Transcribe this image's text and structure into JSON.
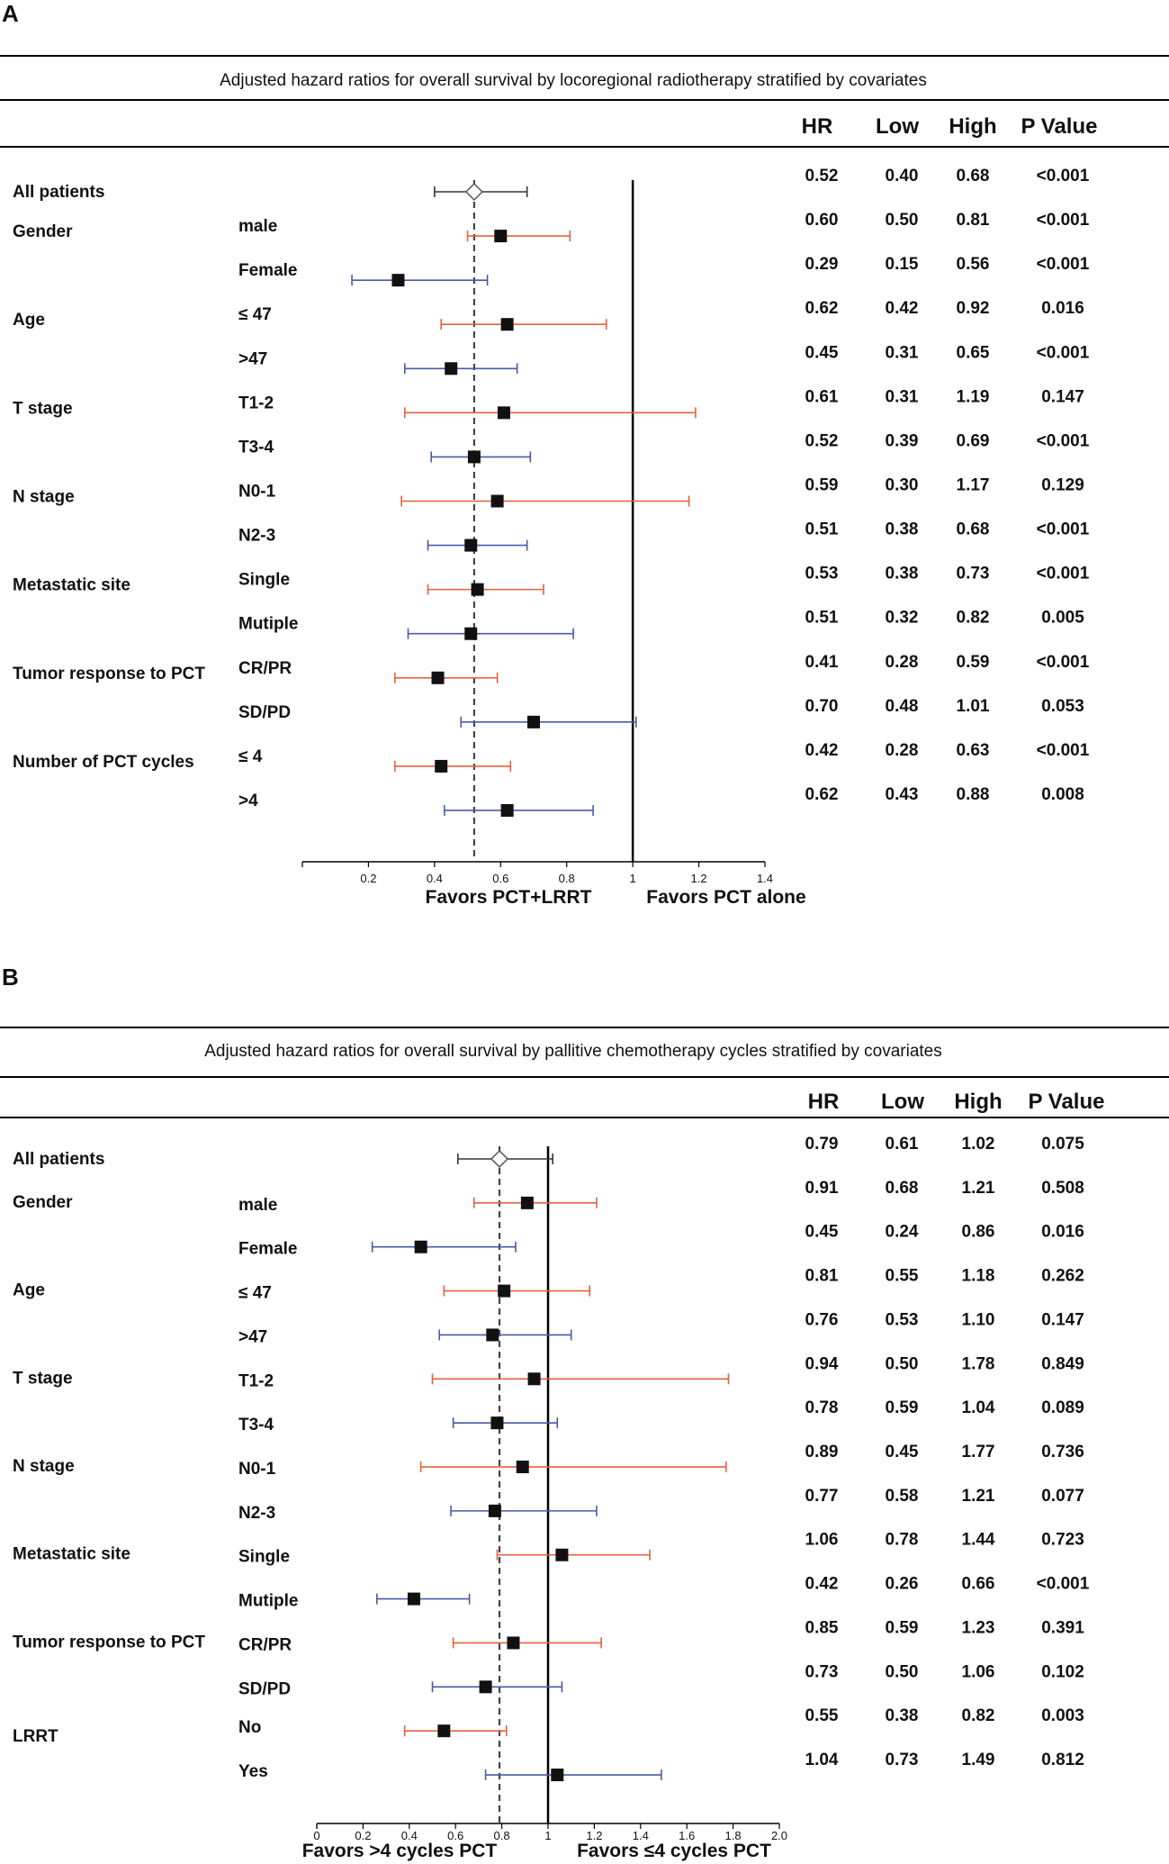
{
  "colors": {
    "upper_ci": "#e8603c",
    "lower_ci": "#4a5aa8",
    "overall_ci": "#333333",
    "marker": "#111111",
    "rule": "#000000"
  },
  "columns": {
    "hr": "HR",
    "low": "Low",
    "high": "High",
    "p": "P Value"
  },
  "chart_data": [
    {
      "panel": "A",
      "type": "forest",
      "title": "Adjusted hazard ratios for overall survival by locoregional radiotherapy stratified by covariates",
      "xlim": [
        0,
        1.4
      ],
      "xticks": [
        "0.2",
        "0.4",
        "0.6",
        "0.8",
        "1",
        "1.2",
        "1.4"
      ],
      "reference_line": 1,
      "dashed_line": 0.52,
      "xlabel_left": "Favors PCT+LRRT",
      "xlabel_right": "Favors PCT alone",
      "rows": [
        {
          "group": "All patients",
          "sub": "",
          "hr": 0.52,
          "low": 0.4,
          "high": 0.68,
          "hr_text": "0.52",
          "low_text": "0.40",
          "high_text": "0.68",
          "p": "<0.001"
        },
        {
          "group": "Gender",
          "sub": "male",
          "hr": 0.6,
          "low": 0.5,
          "high": 0.81,
          "hr_text": "0.60",
          "low_text": "0.50",
          "high_text": "0.81",
          "p": "<0.001"
        },
        {
          "group": "",
          "sub": "Female",
          "hr": 0.29,
          "low": 0.15,
          "high": 0.56,
          "hr_text": "0.29",
          "low_text": "0.15",
          "high_text": "0.56",
          "p": "<0.001"
        },
        {
          "group": "Age",
          "sub": "≤ 47",
          "hr": 0.62,
          "low": 0.42,
          "high": 0.92,
          "hr_text": "0.62",
          "low_text": "0.42",
          "high_text": "0.92",
          "p": "0.016"
        },
        {
          "group": "",
          "sub": ">47",
          "hr": 0.45,
          "low": 0.31,
          "high": 0.65,
          "hr_text": "0.45",
          "low_text": "0.31",
          "high_text": "0.65",
          "p": "<0.001"
        },
        {
          "group": "T stage",
          "sub": "T1-2",
          "hr": 0.61,
          "low": 0.31,
          "high": 1.19,
          "hr_text": "0.61",
          "low_text": "0.31",
          "high_text": "1.19",
          "p": "0.147"
        },
        {
          "group": "",
          "sub": "T3-4",
          "hr": 0.52,
          "low": 0.39,
          "high": 0.69,
          "hr_text": "0.52",
          "low_text": "0.39",
          "high_text": "0.69",
          "p": "<0.001"
        },
        {
          "group": "N stage",
          "sub": "N0-1",
          "hr": 0.59,
          "low": 0.3,
          "high": 1.17,
          "hr_text": "0.59",
          "low_text": "0.30",
          "high_text": "1.17",
          "p": "0.129"
        },
        {
          "group": "",
          "sub": "N2-3",
          "hr": 0.51,
          "low": 0.38,
          "high": 0.68,
          "hr_text": "0.51",
          "low_text": "0.38",
          "high_text": "0.68",
          "p": "<0.001"
        },
        {
          "group": "Metastatic site",
          "sub": "Single",
          "hr": 0.53,
          "low": 0.38,
          "high": 0.73,
          "hr_text": "0.53",
          "low_text": "0.38",
          "high_text": "0.73",
          "p": "<0.001"
        },
        {
          "group": "",
          "sub": "Mutiple",
          "hr": 0.51,
          "low": 0.32,
          "high": 0.82,
          "hr_text": "0.51",
          "low_text": "0.32",
          "high_text": "0.82",
          "p": "0.005"
        },
        {
          "group": "Tumor response to PCT",
          "sub": "CR/PR",
          "hr": 0.41,
          "low": 0.28,
          "high": 0.59,
          "hr_text": "0.41",
          "low_text": "0.28",
          "high_text": "0.59",
          "p": "<0.001"
        },
        {
          "group": "",
          "sub": "SD/PD",
          "hr": 0.7,
          "low": 0.48,
          "high": 1.01,
          "hr_text": "0.70",
          "low_text": "0.48",
          "high_text": "1.01",
          "p": "0.053"
        },
        {
          "group": "Number of PCT cycles",
          "sub": "≤ 4",
          "hr": 0.42,
          "low": 0.28,
          "high": 0.63,
          "hr_text": "0.42",
          "low_text": "0.28",
          "high_text": "0.63",
          "p": "<0.001"
        },
        {
          "group": "",
          "sub": ">4",
          "hr": 0.62,
          "low": 0.43,
          "high": 0.88,
          "hr_text": "0.62",
          "low_text": "0.43",
          "high_text": "0.88",
          "p": "0.008"
        }
      ]
    },
    {
      "panel": "B",
      "type": "forest",
      "title": "Adjusted hazard ratios for overall survival by pallitive chemotherapy cycles stratified by covariates",
      "xlim": [
        0,
        2.0
      ],
      "xticks": [
        "0",
        "0.2",
        "0.4",
        "0.6",
        "0.8",
        "1",
        "1.2",
        "1.4",
        "1.6",
        "1.8",
        "2.0"
      ],
      "reference_line": 1,
      "dashed_line": 0.79,
      "xlabel_left": "Favors >4 cycles PCT",
      "xlabel_right": "Favors ≤4 cycles PCT",
      "rows": [
        {
          "group": "All patients",
          "sub": "",
          "hr": 0.79,
          "low": 0.61,
          "high": 1.02,
          "hr_text": "0.79",
          "low_text": "0.61",
          "high_text": "1.02",
          "p": "0.075"
        },
        {
          "group": "Gender",
          "sub": "male",
          "hr": 0.91,
          "low": 0.68,
          "high": 1.21,
          "hr_text": "0.91",
          "low_text": "0.68",
          "high_text": "1.21",
          "p": "0.508"
        },
        {
          "group": "",
          "sub": "Female",
          "hr": 0.45,
          "low": 0.24,
          "high": 0.86,
          "hr_text": "0.45",
          "low_text": "0.24",
          "high_text": "0.86",
          "p": "0.016"
        },
        {
          "group": "Age",
          "sub": "≤ 47",
          "hr": 0.81,
          "low": 0.55,
          "high": 1.18,
          "hr_text": "0.81",
          "low_text": "0.55",
          "high_text": "1.18",
          "p": "0.262"
        },
        {
          "group": "",
          "sub": ">47",
          "hr": 0.76,
          "low": 0.53,
          "high": 1.1,
          "hr_text": "0.76",
          "low_text": "0.53",
          "high_text": "1.10",
          "p": "0.147"
        },
        {
          "group": "T stage",
          "sub": "T1-2",
          "hr": 0.94,
          "low": 0.5,
          "high": 1.78,
          "hr_text": "0.94",
          "low_text": "0.50",
          "high_text": "1.78",
          "p": "0.849"
        },
        {
          "group": "",
          "sub": "T3-4",
          "hr": 0.78,
          "low": 0.59,
          "high": 1.04,
          "hr_text": "0.78",
          "low_text": "0.59",
          "high_text": "1.04",
          "p": "0.089"
        },
        {
          "group": "N stage",
          "sub": "N0-1",
          "hr": 0.89,
          "low": 0.45,
          "high": 1.77,
          "hr_text": "0.89",
          "low_text": "0.45",
          "high_text": "1.77",
          "p": "0.736"
        },
        {
          "group": "",
          "sub": "N2-3",
          "hr": 0.77,
          "low": 0.58,
          "high": 1.21,
          "hr_text": "0.77",
          "low_text": "0.58",
          "high_text": "1.21",
          "p": "0.077"
        },
        {
          "group": "Metastatic site",
          "sub": "Single",
          "hr": 1.06,
          "low": 0.78,
          "high": 1.44,
          "hr_text": "1.06",
          "low_text": "0.78",
          "high_text": "1.44",
          "p": "0.723"
        },
        {
          "group": "",
          "sub": "Mutiple",
          "hr": 0.42,
          "low": 0.26,
          "high": 0.66,
          "hr_text": "0.42",
          "low_text": "0.26",
          "high_text": "0.66",
          "p": "<0.001"
        },
        {
          "group": "Tumor response to PCT",
          "sub": "CR/PR",
          "hr": 0.85,
          "low": 0.59,
          "high": 1.23,
          "hr_text": "0.85",
          "low_text": "0.59",
          "high_text": "1.23",
          "p": "0.391"
        },
        {
          "group": "",
          "sub": "SD/PD",
          "hr": 0.73,
          "low": 0.5,
          "high": 1.06,
          "hr_text": "0.73",
          "low_text": "0.50",
          "high_text": "1.06",
          "p": "0.102"
        },
        {
          "group": "LRRT",
          "sub": "No",
          "hr": 0.55,
          "low": 0.38,
          "high": 0.82,
          "hr_text": "0.55",
          "low_text": "0.38",
          "high_text": "0.82",
          "p": "0.003"
        },
        {
          "group": "",
          "sub": "Yes",
          "hr": 1.04,
          "low": 0.73,
          "high": 1.49,
          "hr_text": "1.04",
          "low_text": "0.73",
          "high_text": "1.49",
          "p": "0.812"
        }
      ]
    }
  ]
}
